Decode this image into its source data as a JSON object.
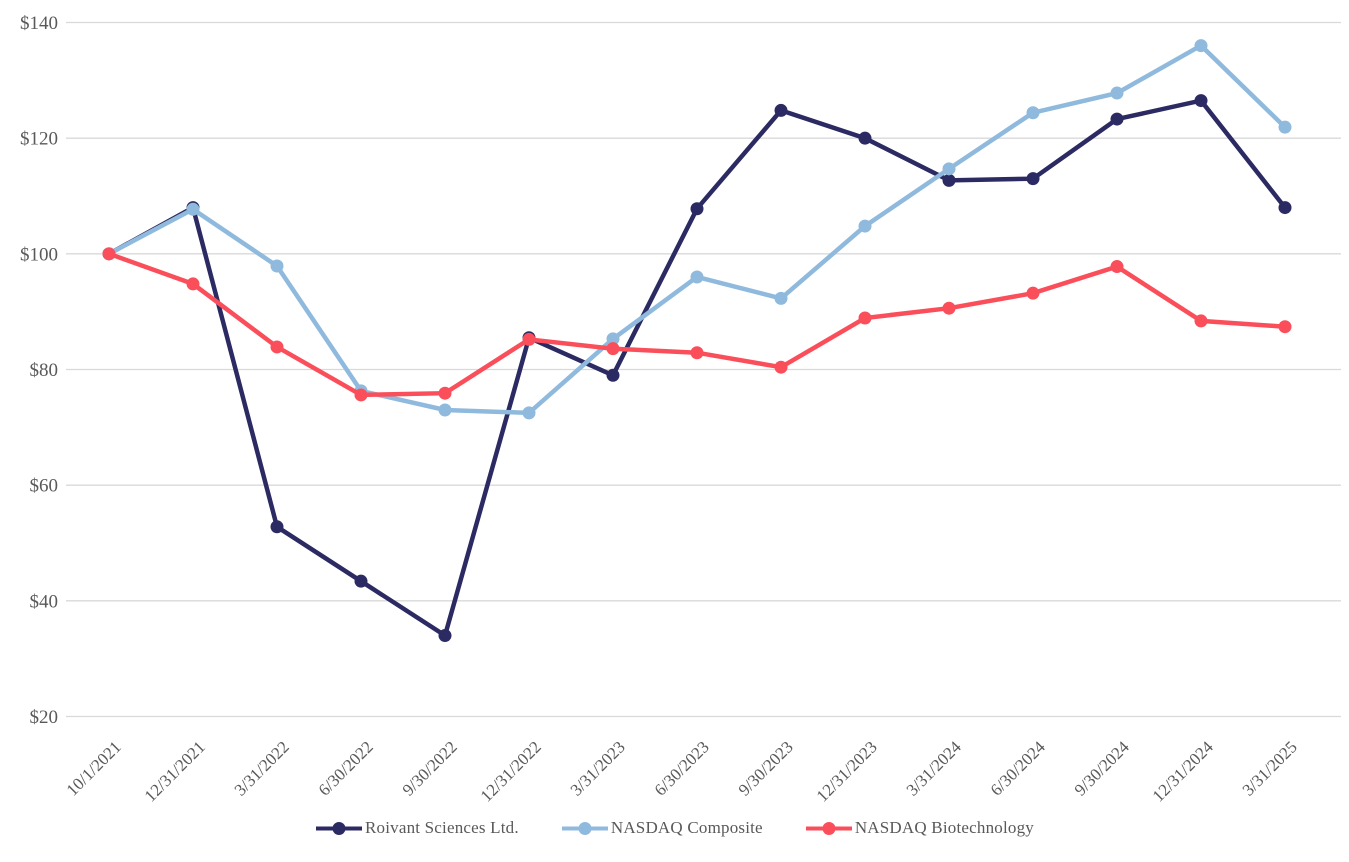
{
  "chart_data": {
    "type": "line",
    "title": "",
    "xlabel": "",
    "ylabel": "",
    "categories": [
      "10/1/2021",
      "12/31/2021",
      "3/31/2022",
      "6/30/2022",
      "9/30/2022",
      "12/31/2022",
      "3/31/2023",
      "6/30/2023",
      "9/30/2023",
      "12/31/2023",
      "3/31/2024",
      "6/30/2024",
      "9/30/2024",
      "12/31/2024",
      "3/31/2025"
    ],
    "y_ticks": [
      20,
      40,
      60,
      80,
      100,
      120,
      140
    ],
    "y_tick_prefix": "$",
    "ylim": [
      20,
      140
    ],
    "grid": "horizontal-only",
    "legend_position": "bottom-center",
    "series": [
      {
        "name": "Roivant Sciences Ltd.",
        "color": "#2c2a62",
        "values": [
          100,
          108,
          52.8,
          43.4,
          34,
          85.5,
          79,
          107.8,
          124.8,
          120,
          112.7,
          113,
          123.3,
          126.5,
          108
        ]
      },
      {
        "name": "NASDAQ Composite",
        "color": "#8fbadd",
        "values": [
          100,
          107.7,
          97.9,
          76.3,
          73,
          72.5,
          85.3,
          96,
          92.3,
          104.8,
          114.7,
          124.4,
          127.8,
          136,
          121.9
        ]
      },
      {
        "name": "NASDAQ Biotechnology",
        "color": "#fa4f5b",
        "values": [
          100,
          94.8,
          83.9,
          75.6,
          75.9,
          85.2,
          83.6,
          82.9,
          80.4,
          88.9,
          90.6,
          93.2,
          97.8,
          88.4,
          87.4
        ]
      }
    ],
    "style": {
      "grid_color": "#d9d9d9",
      "tick_label_color": "#595959",
      "line_width": 4.5,
      "dot_radius": 6.5
    }
  }
}
